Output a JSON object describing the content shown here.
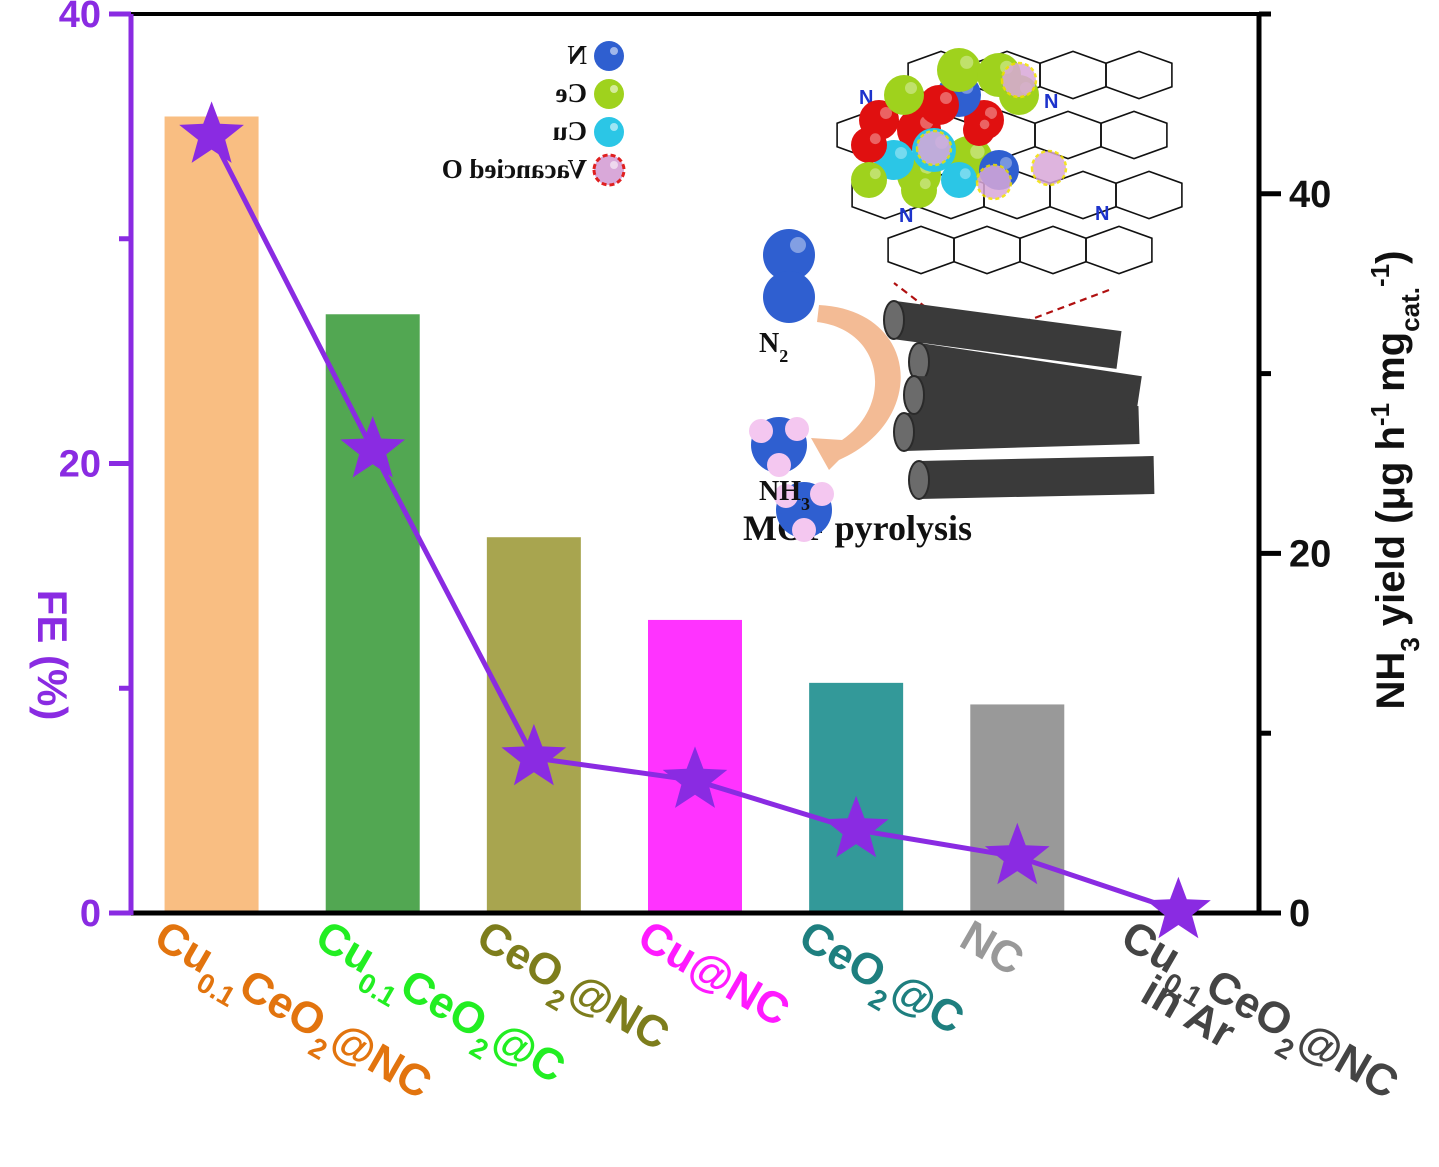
{
  "chart_data": {
    "type": "bar",
    "mirrored": true,
    "categories": [
      {
        "main": "Cu",
        "sub": "0.1",
        "rest": "CeO",
        "sub2": "2",
        "tail": "@NC",
        "line2": "",
        "color": "#e2740e"
      },
      {
        "main": "Cu",
        "sub": "0.1",
        "rest": "CeO",
        "sub2": "2",
        "tail": "@C",
        "line2": "",
        "color": "#22ee22"
      },
      {
        "main": "CeO",
        "sub": "2",
        "rest": "",
        "sub2": "",
        "tail": "@NC",
        "line2": "",
        "color": "#7d7d1c"
      },
      {
        "main": "Cu@NC",
        "sub": "",
        "rest": "",
        "sub2": "",
        "tail": "",
        "line2": "",
        "color": "#ff1aff"
      },
      {
        "main": "CeO",
        "sub": "2",
        "rest": "",
        "sub2": "",
        "tail": "@C",
        "line2": "",
        "color": "#1e7f7f"
      },
      {
        "main": "NC",
        "sub": "",
        "rest": "",
        "sub2": "",
        "tail": "",
        "line2": "",
        "color": "#999999"
      },
      {
        "main": "Cu",
        "sub": "0.1",
        "rest": "CeO",
        "sub2": "2",
        "tail": "@NC",
        "line2": "in Ar",
        "color": "#444444"
      }
    ],
    "series": [
      {
        "kind": "bar",
        "axis": "right",
        "values": [
          44.3,
          33.3,
          20.9,
          16.3,
          12.8,
          11.6,
          0
        ],
        "colors": [
          "#f9be82",
          "#52a752",
          "#a8a54f",
          "#ff33ff",
          "#339999",
          "#999999",
          "#ffffff"
        ]
      },
      {
        "kind": "line",
        "axis": "left",
        "values": [
          34.6,
          20.6,
          6.9,
          5.9,
          3.7,
          2.5,
          0.1
        ],
        "color": "#8a2be2"
      }
    ],
    "left_axis": {
      "label": "FE (%)",
      "ylim": [
        0,
        40
      ],
      "ticks": [
        "0",
        "20",
        "40"
      ],
      "color": "#8a2be2"
    },
    "right_axis": {
      "label_parts": [
        "NH",
        "3",
        " yield (μg h",
        "-1",
        " mg",
        "cat.",
        "-1",
        ")"
      ],
      "ylim": [
        0,
        50
      ],
      "ticks": [
        "0",
        "20",
        "40"
      ]
    },
    "inset": {
      "legend": [
        {
          "label": "N",
          "color": "#2f5fd0"
        },
        {
          "label": "Ce",
          "color": "#9fd21d"
        },
        {
          "label": "Cu",
          "color": "#2bc6e6"
        },
        {
          "label": "Vacancied O",
          "color": "#d9a8d9"
        }
      ],
      "n2_label": "N",
      "n2_sub": "2",
      "nh3_label": "NH",
      "nh3_sub": "3",
      "mof_label": "MOF pyrolysis",
      "ring_label": "N"
    }
  }
}
